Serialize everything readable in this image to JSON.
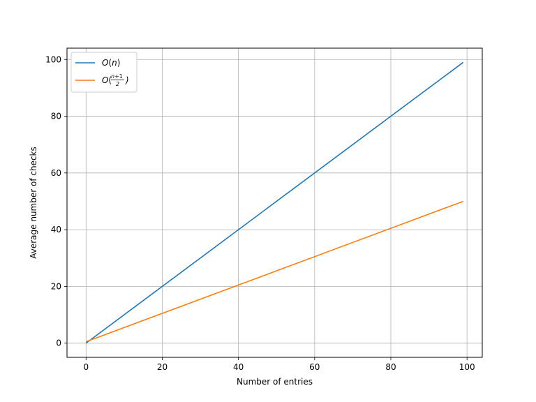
{
  "chart_data": {
    "type": "line",
    "xlabel": "Number of entries",
    "ylabel": "Average number of checks",
    "xlim": [
      -5,
      104
    ],
    "ylim": [
      -5,
      104
    ],
    "xticks": [
      0,
      20,
      40,
      60,
      80,
      100
    ],
    "yticks": [
      0,
      20,
      40,
      60,
      80,
      100
    ],
    "grid": true,
    "legend_position": "top-left",
    "series": [
      {
        "name": "O(n)",
        "color": "#1f77b4",
        "x": [
          0,
          99
        ],
        "y": [
          0,
          99
        ]
      },
      {
        "name": "O((n+1)/2)",
        "color": "#ff7f0e",
        "x": [
          0,
          99
        ],
        "y": [
          0.5,
          50
        ]
      }
    ]
  }
}
